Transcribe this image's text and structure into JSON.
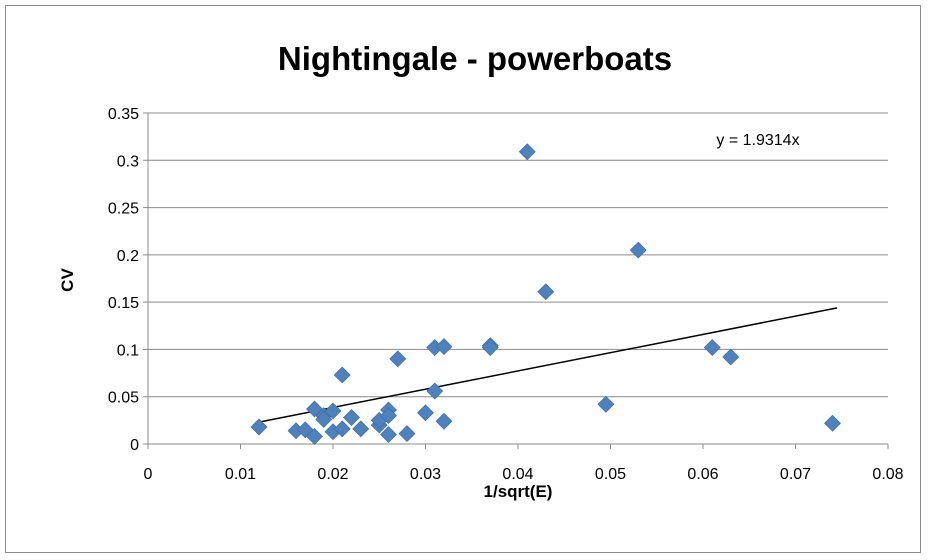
{
  "chart_data": {
    "type": "scatter",
    "title": "Nightingale - powerboats",
    "xlabel": "1/sqrt(E)",
    "ylabel": "CV",
    "xlim": [
      0,
      0.08
    ],
    "ylim": [
      0,
      0.35
    ],
    "x_ticks": [
      0,
      0.01,
      0.02,
      0.03,
      0.04,
      0.05,
      0.06,
      0.07,
      0.08
    ],
    "x_tick_labels": [
      "0",
      "0.01",
      "0.02",
      "0.03",
      "0.04",
      "0.05",
      "0.06",
      "0.07",
      "0.08"
    ],
    "y_ticks": [
      0,
      0.05,
      0.1,
      0.15,
      0.2,
      0.25,
      0.3,
      0.35
    ],
    "y_tick_labels": [
      "0",
      "0.05",
      "0.1",
      "0.15",
      "0.2",
      "0.25",
      "0.3",
      "0.35"
    ],
    "grid": "horizontal",
    "legend": "none",
    "marker_color": "#4F81BD",
    "marker": "diamond",
    "series": [
      {
        "points": [
          [
            0.012,
            0.018
          ],
          [
            0.016,
            0.014
          ],
          [
            0.017,
            0.015
          ],
          [
            0.018,
            0.037
          ],
          [
            0.018,
            0.008
          ],
          [
            0.019,
            0.03
          ],
          [
            0.019,
            0.026
          ],
          [
            0.02,
            0.035
          ],
          [
            0.02,
            0.013
          ],
          [
            0.021,
            0.016
          ],
          [
            0.021,
            0.073
          ],
          [
            0.022,
            0.028
          ],
          [
            0.023,
            0.016
          ],
          [
            0.025,
            0.02
          ],
          [
            0.025,
            0.025
          ],
          [
            0.026,
            0.036
          ],
          [
            0.026,
            0.01
          ],
          [
            0.026,
            0.03
          ],
          [
            0.027,
            0.09
          ],
          [
            0.028,
            0.011
          ],
          [
            0.03,
            0.033
          ],
          [
            0.031,
            0.056
          ],
          [
            0.031,
            0.102
          ],
          [
            0.032,
            0.103
          ],
          [
            0.032,
            0.024
          ],
          [
            0.037,
            0.104
          ],
          [
            0.037,
            0.102
          ],
          [
            0.041,
            0.309
          ],
          [
            0.043,
            0.161
          ],
          [
            0.0495,
            0.042
          ],
          [
            0.053,
            0.205
          ],
          [
            0.061,
            0.102
          ],
          [
            0.063,
            0.092
          ],
          [
            0.074,
            0.022
          ]
        ]
      }
    ],
    "trendline": {
      "type": "linear",
      "slope": 1.9314,
      "intercept": 0,
      "x_range": [
        0.012,
        0.0745
      ],
      "color": "#000000",
      "label": "y = 1.9314x"
    }
  }
}
